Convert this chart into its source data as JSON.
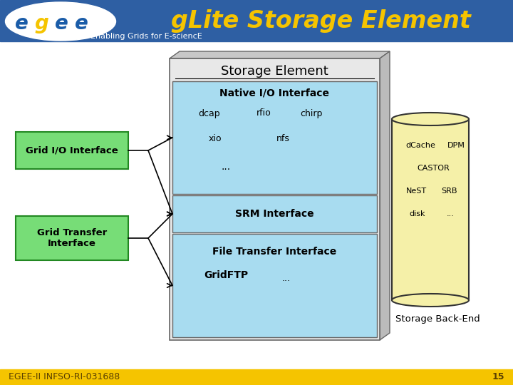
{
  "header_bg": "#2E5FA3",
  "header_title": "gLite Storage Element",
  "header_title_color": "#F5C400",
  "header_title_fontsize": 24,
  "header_subtitle": "Enabling Grids for E-sciencE",
  "header_subtitle_color": "#FFFFFF",
  "header_subtitle_fontsize": 8,
  "footer_bg": "#F5C400",
  "footer_text": "EGEE-II INFSO-RI-031688",
  "footer_number": "15",
  "footer_text_color": "#5A4000",
  "footer_fontsize": 9,
  "bg_color": "#FFFFFF",
  "logo_e_color": "#1A5CA8",
  "logo_g_color": "#F5C400",
  "se_box_bg": "#E8E8E8",
  "se_box_border": "#888888",
  "se_title": "Storage Element",
  "native_io_bg": "#A8DCF0",
  "native_io_border": "#666666",
  "native_io_title": "Native I/O Interface",
  "srm_bg": "#A8DCF0",
  "srm_border": "#666666",
  "srm_title": "SRM Interface",
  "fti_bg": "#A8DCF0",
  "fti_border": "#666666",
  "grid_io_bg": "#77DD77",
  "grid_io_border": "#228822",
  "grid_io_title": "Grid I/O Interface",
  "grid_transfer_bg": "#77DD77",
  "grid_transfer_border": "#228822",
  "grid_transfer_title": "Grid Transfer\nInterface",
  "cylinder_body_color": "#F5F0A8",
  "cylinder_border_color": "#333333",
  "cylinder_label": "Storage Back-End",
  "main_box_3d_color": "#C8C8C8"
}
